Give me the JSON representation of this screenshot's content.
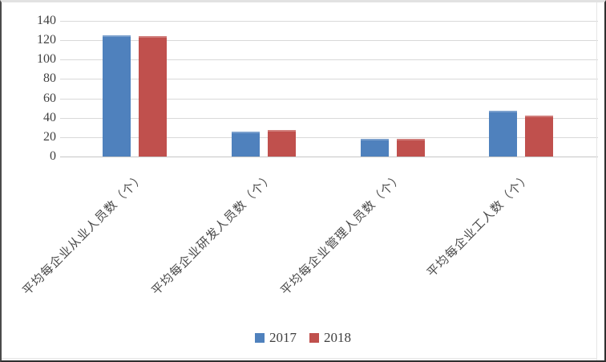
{
  "chart_data": {
    "type": "bar",
    "title": "",
    "xlabel": "",
    "ylabel": "",
    "categories": [
      "平均每企业从业人员数（个）",
      "平均每企业研发人员数（个）",
      "平均每企业管理人员数（个）",
      "平均每企业工人数（个）"
    ],
    "series": [
      {
        "name": "2017",
        "color": "#4F81BD",
        "values": [
          125,
          26,
          18,
          47
        ]
      },
      {
        "name": "2018",
        "color": "#C0504D",
        "values": [
          124,
          27,
          18,
          42
        ]
      }
    ],
    "ylim": [
      0,
      140
    ],
    "yticks": [
      0,
      20,
      40,
      60,
      80,
      100,
      120,
      140
    ],
    "grid": true,
    "legend_position": "bottom-center",
    "bar_orientation": "vertical",
    "category_label_rotation_deg": 45
  },
  "colors": {
    "background": "#ffffff",
    "gridline": "#d9d9d9",
    "axis_text": "#3f3f3f",
    "category_text": "#494949",
    "series_2017": "#4F81BD",
    "series_2018": "#C0504D"
  }
}
